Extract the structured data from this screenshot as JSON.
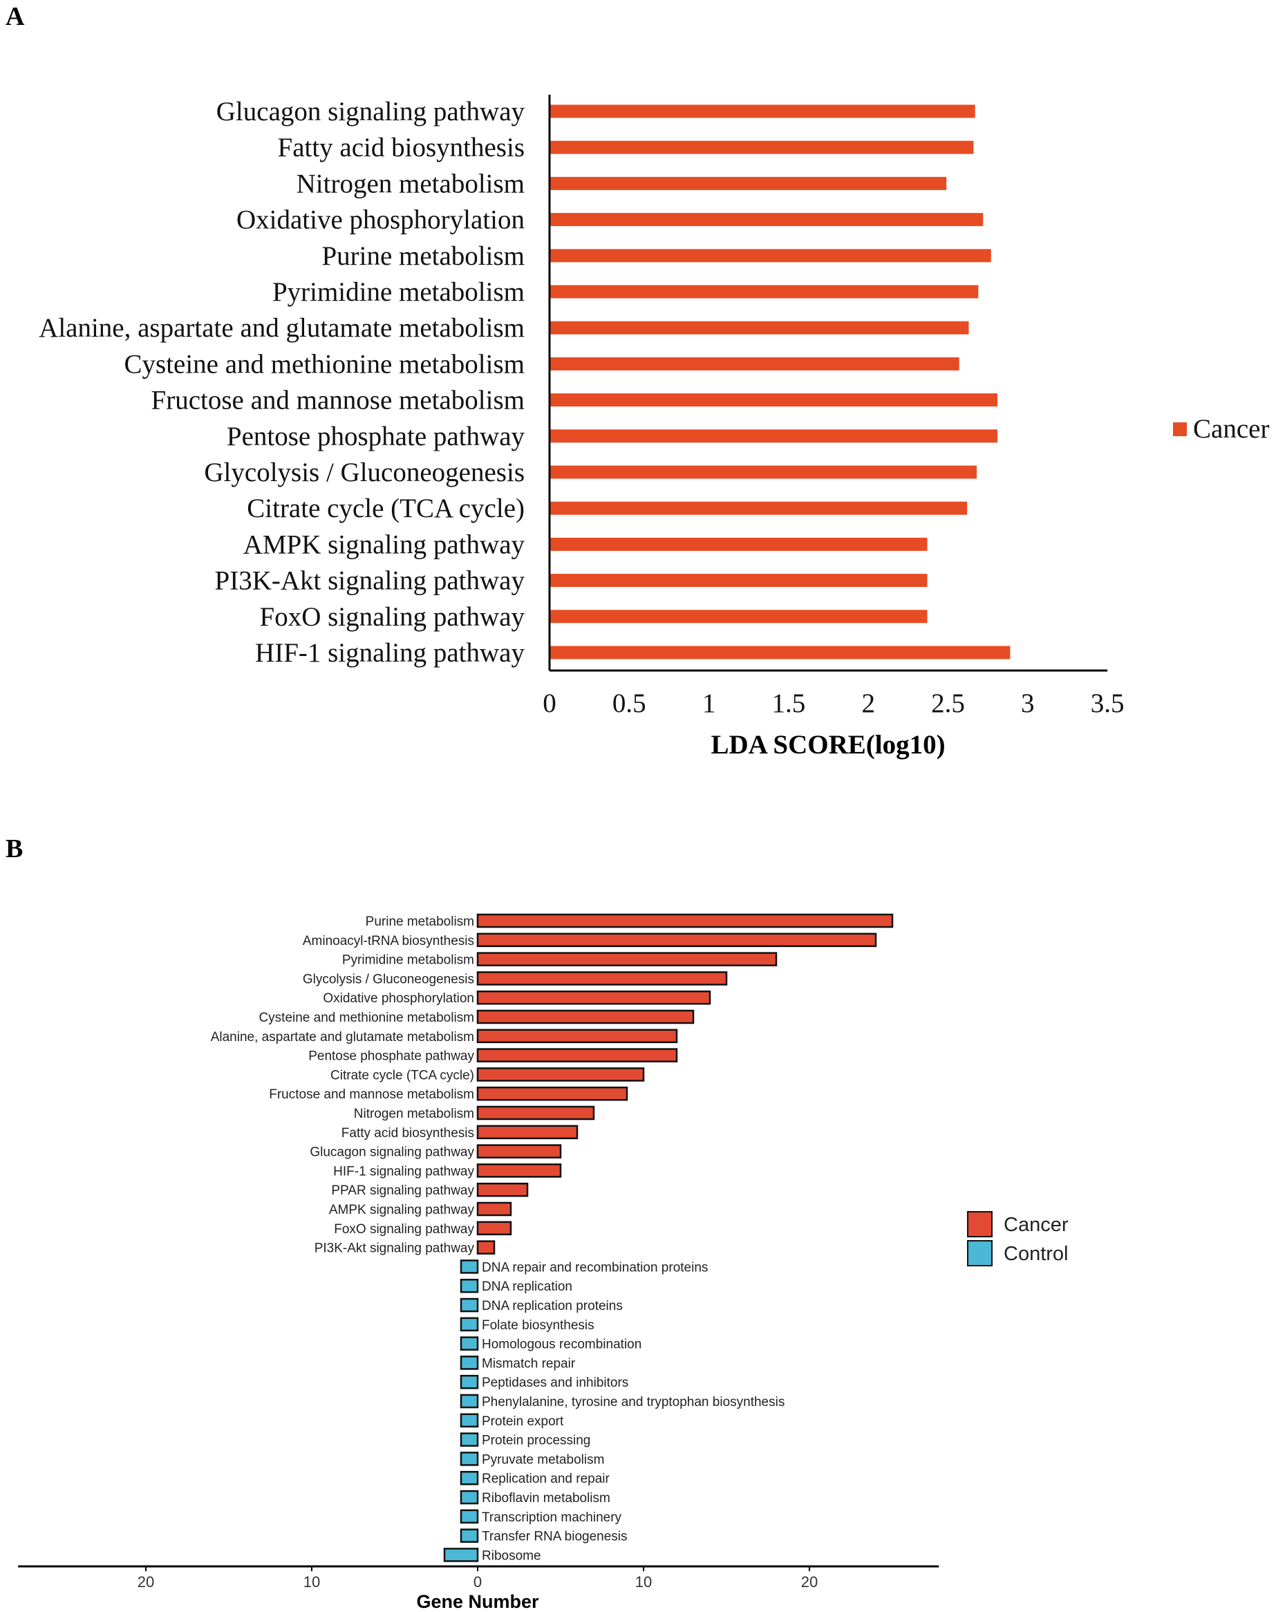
{
  "panels": {
    "a": "A",
    "b": "B"
  },
  "colors": {
    "a_bar": "#E64C23",
    "cancer": "#E34A33",
    "control": "#4BB8D6"
  },
  "chart_data": [
    {
      "type": "bar",
      "orientation": "horizontal",
      "panel": "A",
      "categories": [
        "Glucagon signaling pathway",
        "Fatty acid biosynthesis",
        "Nitrogen metabolism",
        "Oxidative phosphorylation",
        "Purine metabolism",
        "Pyrimidine metabolism",
        "Alanine, aspartate and glutamate metabolism",
        "Cysteine and methionine metabolism",
        "Fructose and mannose metabolism",
        "Pentose phosphate pathway",
        "Glycolysis / Gluconeogenesis",
        "Citrate cycle (TCA cycle)",
        "AMPK signaling pathway",
        "PI3K-Akt signaling pathway",
        "FoxO signaling pathway",
        "HIF-1 signaling pathway"
      ],
      "series": [
        {
          "name": "Cancer",
          "values": [
            2.67,
            2.66,
            2.49,
            2.72,
            2.77,
            2.69,
            2.63,
            2.57,
            2.81,
            2.81,
            2.68,
            2.62,
            2.37,
            2.37,
            2.37,
            2.89
          ]
        }
      ],
      "xlabel": "LDA SCORE(log10)",
      "xlim": [
        0,
        3.5
      ],
      "xticks": [
        "0",
        "0.5",
        "1",
        "1.5",
        "2",
        "2.5",
        "3",
        "3.5"
      ],
      "xtick_values": [
        0,
        0.5,
        1,
        1.5,
        2,
        2.5,
        3,
        3.5
      ],
      "legend": {
        "entries": [
          "Cancer"
        ],
        "placement": "right"
      },
      "grid": false
    },
    {
      "type": "bar",
      "orientation": "horizontal",
      "panel": "B",
      "categories": [
        "Purine metabolism",
        "Aminoacyl-tRNA biosynthesis",
        "Pyrimidine metabolism",
        "Glycolysis / Gluconeogenesis",
        "Oxidative phosphorylation",
        "Cysteine and methionine metabolism",
        "Alanine, aspartate and glutamate metabolism",
        "Pentose phosphate pathway",
        "Citrate cycle (TCA cycle)",
        "Fructose and mannose metabolism",
        "Nitrogen metabolism",
        "Fatty acid biosynthesis",
        "Glucagon signaling pathway",
        "HIF-1 signaling pathway",
        "PPAR signaling pathway",
        "AMPK signaling pathway",
        "FoxO signaling pathway",
        "PI3K-Akt signaling pathway",
        "DNA repair and recombination proteins",
        "DNA replication",
        "DNA replication proteins",
        "Folate biosynthesis",
        "Homologous recombination",
        "Mismatch repair",
        "Peptidases and inhibitors",
        "Phenylalanine, tyrosine and tryptophan biosynthesis",
        "Protein export",
        "Protein processing",
        "Pyruvate metabolism",
        "Replication and repair",
        "Riboflavin metabolism",
        "Transcription machinery",
        "Transfer RNA biogenesis",
        "Ribosome"
      ],
      "values": [
        25,
        24,
        18,
        15,
        14,
        13,
        12,
        12,
        10,
        9,
        7,
        6,
        5,
        5,
        3,
        2,
        2,
        1,
        -1,
        -1,
        -1,
        -1,
        -1,
        -1,
        -1,
        -1,
        -1,
        -1,
        -1,
        -1,
        -1,
        -1,
        -1,
        -2
      ],
      "groups": [
        "Cancer",
        "Cancer",
        "Cancer",
        "Cancer",
        "Cancer",
        "Cancer",
        "Cancer",
        "Cancer",
        "Cancer",
        "Cancer",
        "Cancer",
        "Cancer",
        "Cancer",
        "Cancer",
        "Cancer",
        "Cancer",
        "Cancer",
        "Cancer",
        "Control",
        "Control",
        "Control",
        "Control",
        "Control",
        "Control",
        "Control",
        "Control",
        "Control",
        "Control",
        "Control",
        "Control",
        "Control",
        "Control",
        "Control",
        "Control"
      ],
      "xlabel": "Gene Number",
      "xlim": [
        -27.7,
        27.8
      ],
      "xticks": [
        "20",
        "10",
        "0",
        "10",
        "20"
      ],
      "xtick_values": [
        -20,
        -10,
        0,
        10,
        20
      ],
      "legend": {
        "entries": [
          "Cancer",
          "Control"
        ],
        "placement": "right"
      },
      "grid": false
    }
  ]
}
